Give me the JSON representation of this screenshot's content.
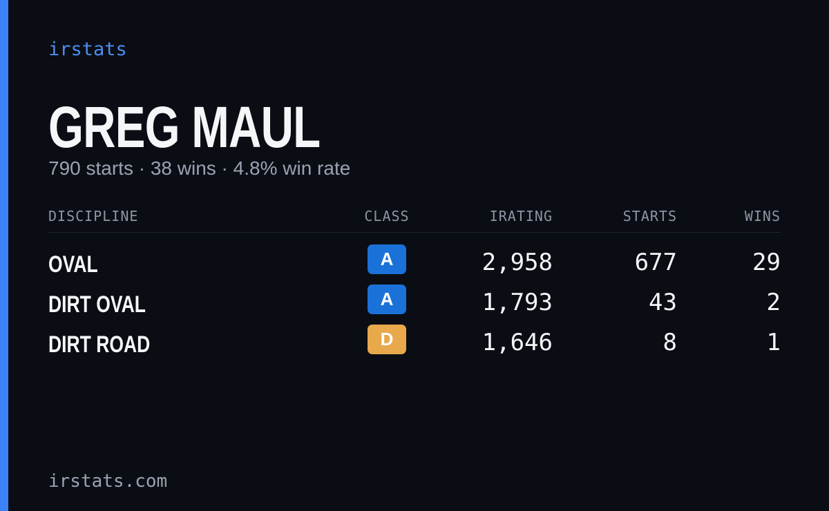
{
  "brand": "irstats",
  "name": "GREG MAUL",
  "subtitle": "790 starts · 38 wins · 4.8% win rate",
  "table": {
    "headers": [
      "DISCIPLINE",
      "CLASS",
      "IRATING",
      "STARTS",
      "WINS"
    ],
    "rows": [
      [
        "OVAL",
        "A",
        "2,958",
        677,
        29
      ],
      [
        "DIRT OVAL",
        "A",
        "1,793",
        43,
        2
      ],
      [
        "DIRT ROAD",
        "D",
        "1,646",
        8,
        1
      ]
    ]
  },
  "footer": "irstats.com"
}
